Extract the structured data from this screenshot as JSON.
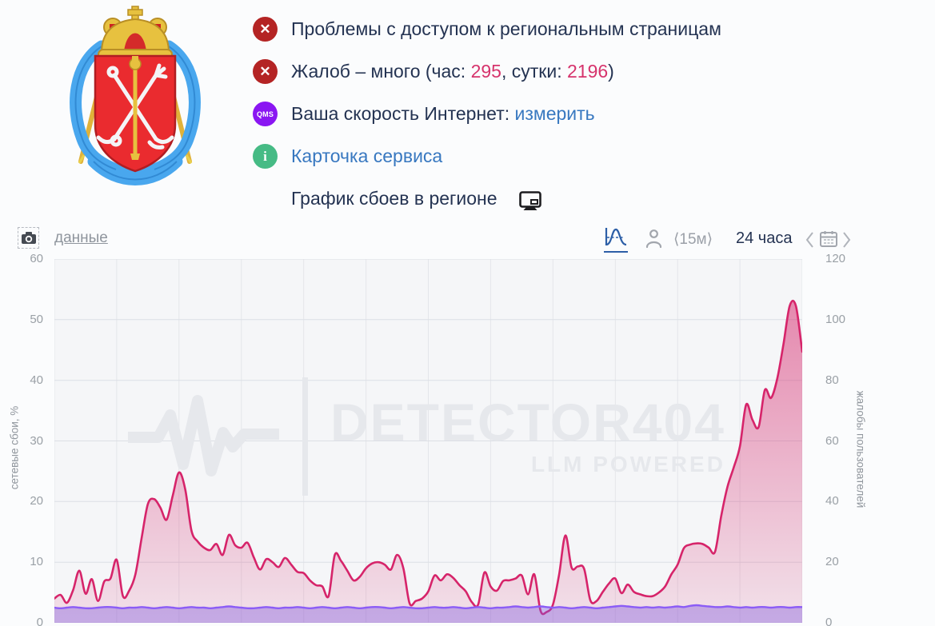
{
  "emblem": {
    "title": "Герб Санкт-Петербурга"
  },
  "status": {
    "row1": {
      "glyph": "✕",
      "text": "Проблемы с доступом к региональным страницам"
    },
    "row2": {
      "glyph": "✕",
      "prefix": "Жалоб – много (час: ",
      "hour": "295",
      "mid": ", сутки: ",
      "day": "2196",
      "suffix": ")"
    },
    "row3": {
      "badge": "QMS",
      "prefix": "Ваша скорость Интернет: ",
      "link": "измерить"
    },
    "row4": {
      "badge": "i",
      "link": "Карточка сервиса"
    },
    "row5": {
      "text": "График сбоев в регионе"
    }
  },
  "toolbar": {
    "data_link": "данные",
    "interval": "⟨15м⟩",
    "range": "24 часа"
  },
  "colors": {
    "error_red": "#b42424",
    "qms_purple": "#8a16f2",
    "info_green": "#46bb85",
    "accent_pink": "#d6246a",
    "accent_purple": "#8b5cf6",
    "link_blue": "#3878c0",
    "number_pink": "#d6336c"
  },
  "chart_data": {
    "type": "area",
    "title": "График сбоев в регионе",
    "range_label": "24 часа",
    "interval_label": "15м",
    "grid": {
      "v_lines": 13,
      "h_from_left_ticks": true
    },
    "y_left": {
      "label": "сетевые сбои, %",
      "min": 0,
      "max": 60,
      "ticks": [
        0,
        10,
        20,
        30,
        40,
        50,
        60
      ]
    },
    "y_right": {
      "label": "жалобы пользователей",
      "min": 0,
      "max": 120,
      "ticks": [
        0,
        20,
        40,
        60,
        80,
        100,
        120
      ]
    },
    "watermark": {
      "logo": "pulse-icon",
      "text": "DETECTOR404",
      "subtext": "LLM POWERED"
    },
    "series": [
      {
        "name": "жалобы пользователей",
        "axis": "right",
        "color": "#d6246a",
        "fill": "url(#gpink)",
        "width": 2.6,
        "values": [
          8,
          9.2,
          6.6,
          10.8,
          17.2,
          9.6,
          14.4,
          7.2,
          13.6,
          14.6,
          20.8,
          8.8,
          10.6,
          16,
          28,
          39.2,
          40.8,
          38,
          34,
          42,
          49.6,
          44,
          30.4,
          26.8,
          24.8,
          24,
          26,
          22.4,
          29,
          25.6,
          24.8,
          26.4,
          21.6,
          17.6,
          21,
          20,
          18.4,
          21.4,
          19.2,
          16.8,
          16.4,
          14,
          12.4,
          12,
          8.8,
          22.4,
          20.4,
          17.2,
          14,
          15.2,
          18,
          19.6,
          20,
          19.2,
          17.6,
          22.4,
          18,
          6.4,
          7.2,
          8,
          10.4,
          15.6,
          14,
          16,
          14.8,
          12.4,
          10.4,
          6.8,
          6,
          16.6,
          12,
          10.6,
          13.8,
          14,
          14.6,
          15.6,
          9.4,
          16,
          4,
          3.6,
          6,
          16,
          28.8,
          18.2,
          18.6,
          17.8,
          7.4,
          7.2,
          10.2,
          13,
          14.6,
          9.8,
          12.6,
          10.2,
          9.4,
          8.8,
          8.8,
          10,
          12,
          16,
          19.2,
          24.6,
          25.8,
          26.2,
          26,
          24.8,
          23.4,
          35.2,
          44.8,
          51.2,
          58.2,
          72,
          67,
          64.6,
          76.8,
          74.2,
          80.6,
          92,
          104.6,
          104.4,
          89.4
        ]
      },
      {
        "name": "сетевые сбои, %",
        "axis": "left",
        "color": "#8b5cf6",
        "fill": "rgba(130,88,220,0.40)",
        "width": 2.4,
        "values": [
          2.5,
          2.4,
          2.5,
          2.6,
          2.5,
          2.4,
          2.4,
          2.5,
          2.6,
          2.6,
          2.5,
          2.4,
          2.5,
          2.5,
          2.6,
          2.5,
          2.4,
          2.5,
          2.6,
          2.5,
          2.4,
          2.5,
          2.6,
          2.5,
          2.5,
          2.4,
          2.5,
          2.6,
          2.7,
          2.6,
          2.5,
          2.4,
          2.4,
          2.5,
          2.6,
          2.5,
          2.4,
          2.5,
          2.5,
          2.6,
          2.5,
          2.4,
          2.5,
          2.6,
          2.5,
          2.4,
          2.5,
          2.6,
          2.5,
          2.4,
          2.5,
          2.6,
          2.6,
          2.5,
          2.4,
          2.5,
          2.6,
          2.5,
          2.4,
          2.4,
          2.5,
          2.6,
          2.5,
          2.5,
          2.6,
          2.5,
          2.4,
          2.5,
          2.6,
          2.5,
          2.4,
          2.5,
          2.5,
          2.6,
          2.7,
          2.6,
          2.5,
          2.6,
          2.7,
          2.6,
          2.5,
          2.6,
          2.5,
          2.4,
          2.5,
          2.6,
          2.5,
          2.4,
          2.5,
          2.6,
          2.7,
          2.8,
          2.7,
          2.6,
          2.5,
          2.6,
          2.5,
          2.6,
          2.5,
          2.6,
          2.7,
          2.6,
          2.8,
          2.9,
          2.8,
          2.7,
          2.6,
          2.6,
          2.7,
          2.6,
          2.5,
          2.6,
          2.5,
          2.6,
          2.6,
          2.5,
          2.6,
          2.6,
          2.5,
          2.6,
          2.6
        ]
      }
    ]
  }
}
